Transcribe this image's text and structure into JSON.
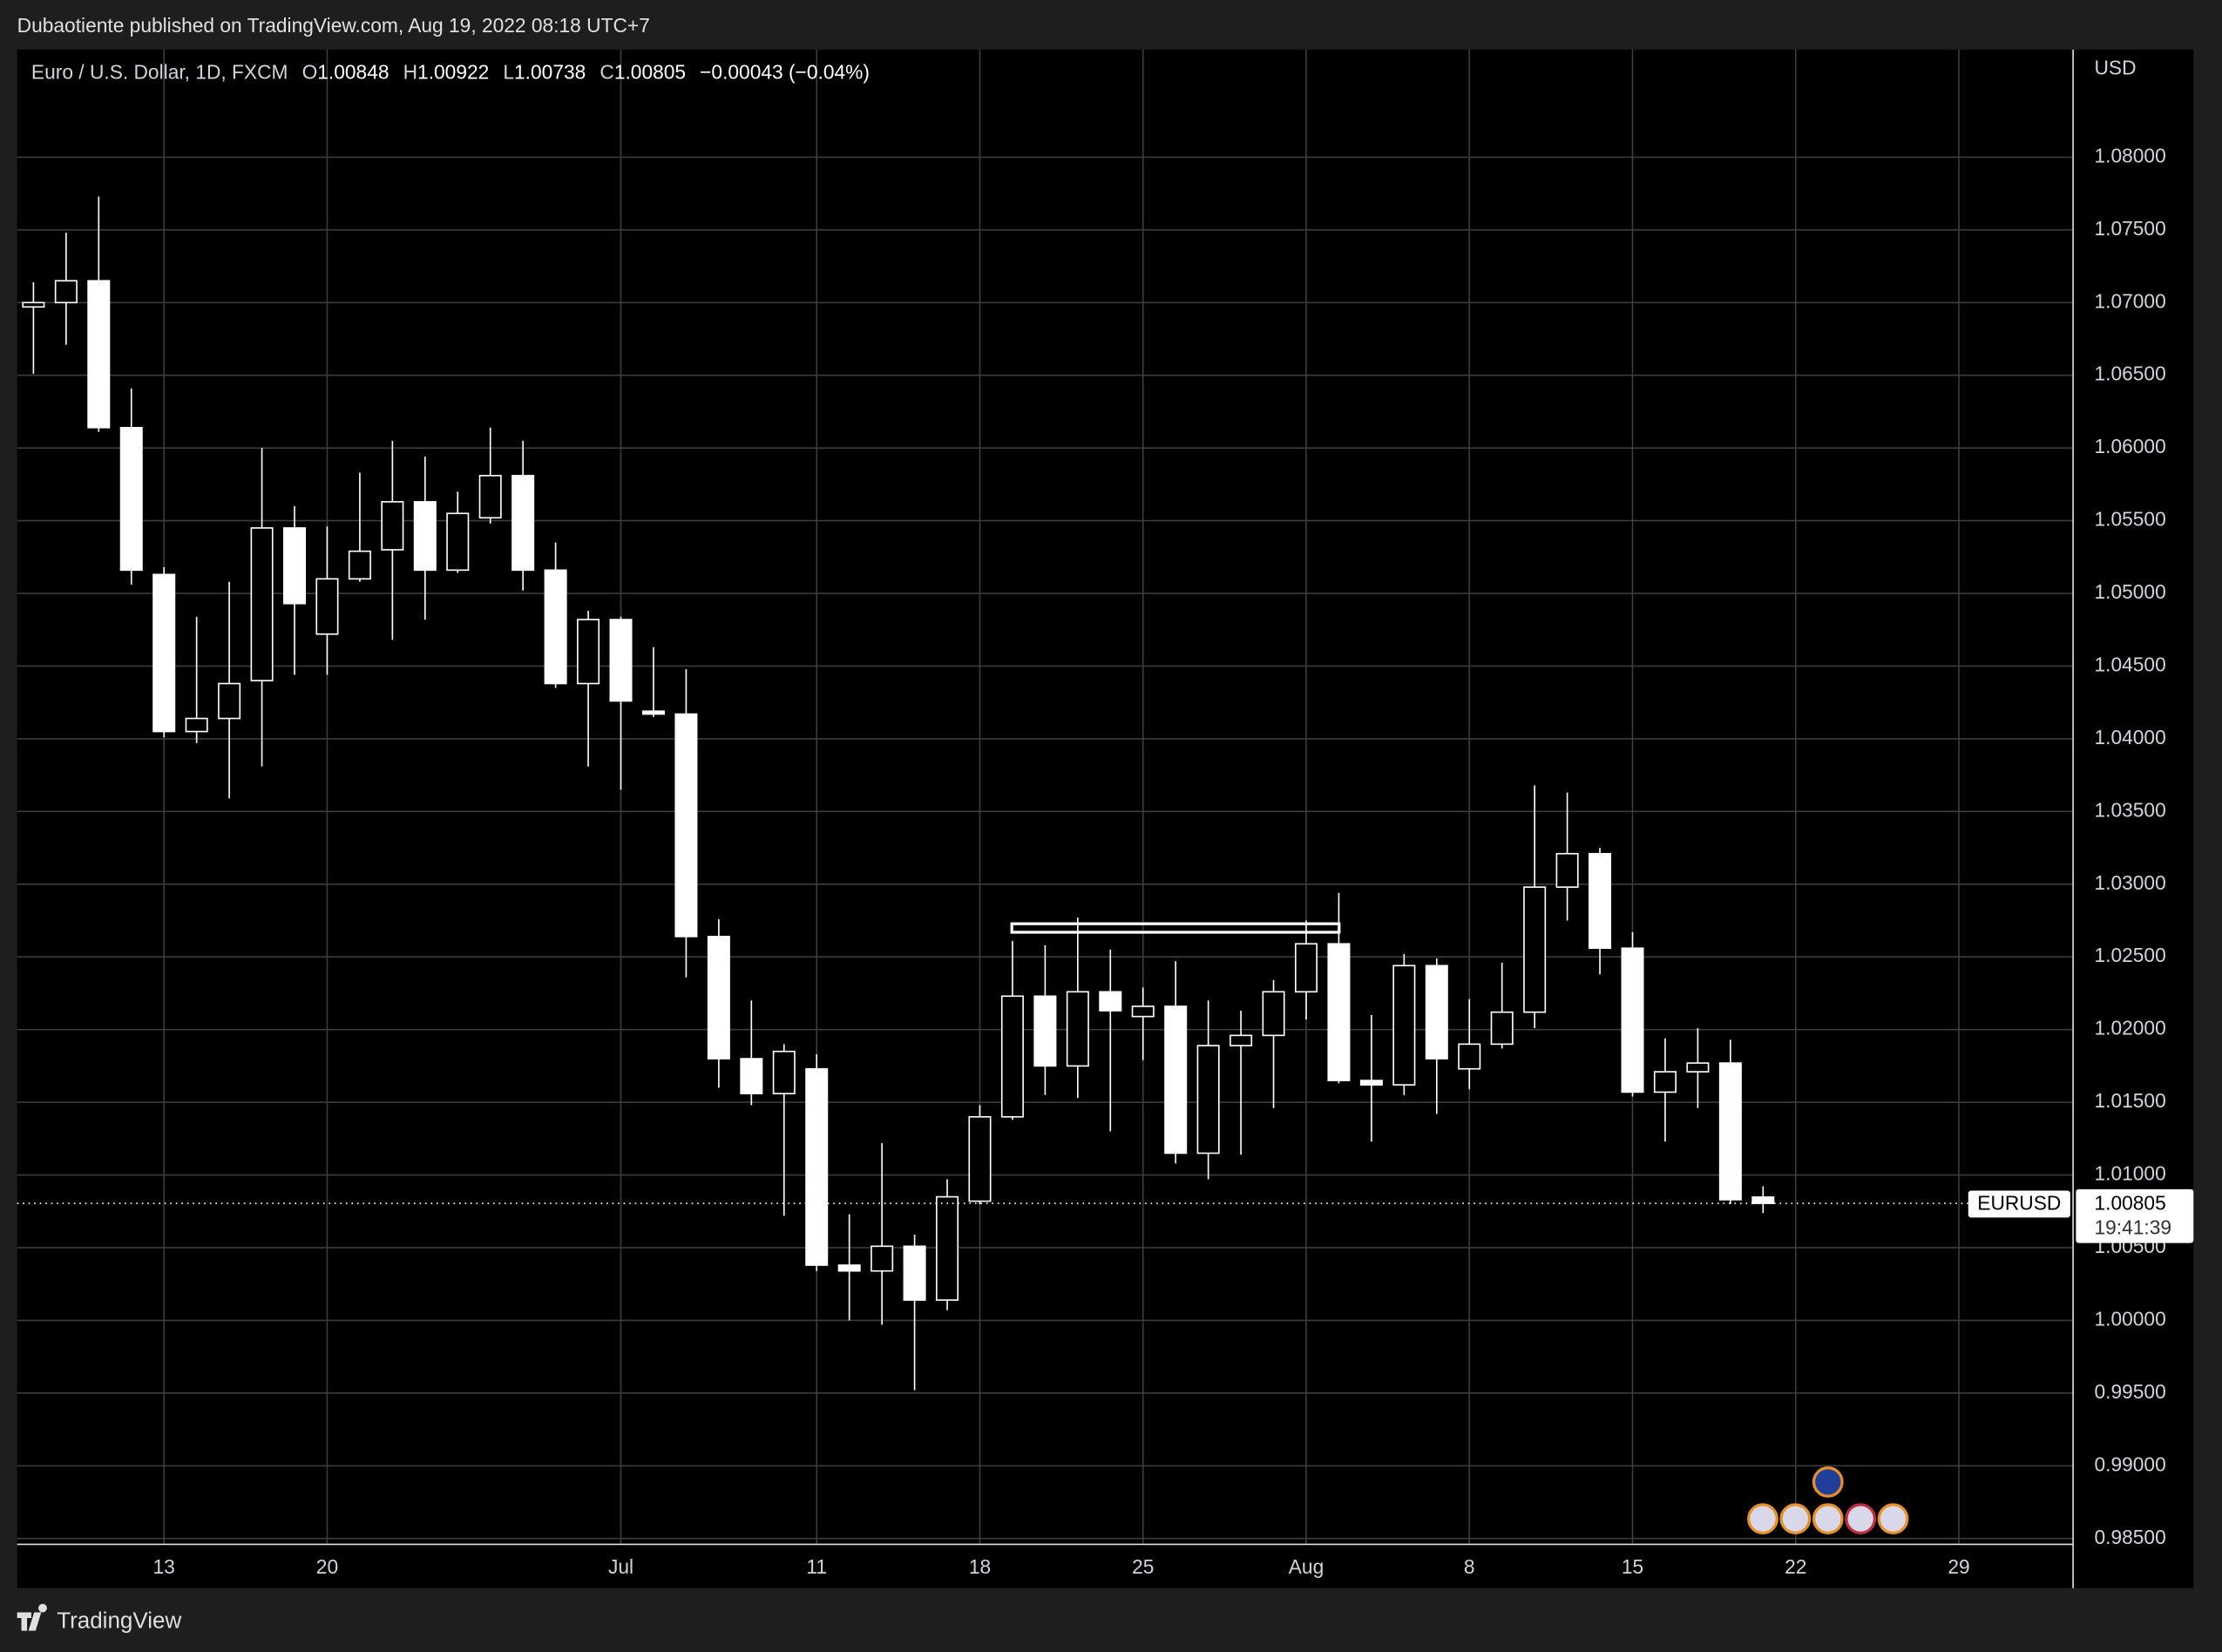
{
  "header": {
    "publisher": "Dubaotiente published on TradingView.com, Aug 19, 2022 08:18 UTC+7",
    "footer_logo": "TradingView"
  },
  "chart_data": {
    "type": "candlestick",
    "title": "Euro / U.S. Dollar, 1D, FXCM",
    "ohlc_labels": [
      "O",
      "H",
      "L",
      "C"
    ],
    "change_label": "−0.00043 (−0.04%)",
    "currency": "USD",
    "symbol_tag": "EURUSD",
    "countdown": "19:41:39",
    "color": "#ffffff",
    "grid": true,
    "categories": [
      null,
      null,
      null,
      null,
      "13",
      null,
      null,
      null,
      null,
      "20",
      null,
      null,
      null,
      null,
      null,
      null,
      null,
      null,
      "Jul",
      null,
      null,
      null,
      null,
      null,
      "11",
      null,
      null,
      null,
      null,
      "18",
      null,
      null,
      null,
      null,
      "25",
      null,
      null,
      null,
      null,
      "Aug",
      null,
      null,
      null,
      null,
      "8",
      null,
      null,
      null,
      null,
      "15",
      null,
      null,
      null,
      null,
      "22",
      null,
      null,
      null,
      null,
      "29",
      null,
      null,
      null
    ],
    "open": [
      1.0697,
      1.07,
      1.0715,
      1.0614,
      1.0513,
      1.0405,
      1.0414,
      1.044,
      1.0545,
      1.0472,
      1.051,
      1.053,
      1.0563,
      1.0516,
      1.0552,
      1.0581,
      1.0516,
      1.0438,
      1.0482,
      1.0419,
      1.0417,
      1.0264,
      1.018,
      1.0156,
      1.0173,
      1.0038,
      1.0034,
      1.0051,
      1.0014,
      1.0082,
      1.014,
      1.0223,
      1.0175,
      1.0226,
      1.0209,
      1.0216,
      1.0115,
      1.0189,
      1.0196,
      1.0226,
      1.0259,
      1.0165,
      1.0162,
      1.0244,
      1.0173,
      1.019,
      1.0212,
      1.0298,
      1.0321,
      1.0256,
      1.0157,
      1.0171,
      1.0177,
      1.00848,
      null,
      null,
      null,
      null,
      null,
      null,
      null,
      null,
      null
    ],
    "high": [
      1.0714,
      1.0748,
      1.0773,
      1.0641,
      1.0518,
      1.0484,
      1.0508,
      1.06,
      1.056,
      1.0546,
      1.0583,
      1.0605,
      1.0594,
      1.057,
      1.0614,
      1.0605,
      1.0535,
      1.0488,
      1.0484,
      1.0463,
      1.0448,
      1.0276,
      1.022,
      1.019,
      1.0183,
      1.0073,
      1.0122,
      1.0059,
      1.0097,
      1.0148,
      1.0261,
      1.0258,
      1.0277,
      1.0255,
      1.0229,
      1.0247,
      1.022,
      1.0213,
      1.0234,
      1.0275,
      1.0294,
      1.021,
      1.0252,
      1.0249,
      1.0221,
      1.0246,
      1.0368,
      1.0363,
      1.0325,
      1.0267,
      1.0194,
      1.0201,
      1.0193,
      1.00922,
      null,
      null,
      null,
      null,
      null,
      null,
      null,
      null,
      null
    ],
    "low": [
      1.0651,
      1.0671,
      1.0611,
      1.0506,
      1.0401,
      1.0397,
      1.0359,
      1.0381,
      1.0444,
      1.0444,
      1.0508,
      1.0468,
      1.0482,
      1.0514,
      1.0548,
      1.0502,
      1.0435,
      1.0381,
      1.0365,
      1.0415,
      1.0236,
      1.016,
      1.0148,
      1.0072,
      1.0034,
      1.0,
      0.9997,
      0.9952,
      1.0007,
      1.008,
      1.0138,
      1.0155,
      1.0153,
      1.013,
      1.0179,
      1.0108,
      1.0097,
      1.0114,
      1.0146,
      1.0207,
      1.0163,
      1.0123,
      1.0155,
      1.0142,
      1.0159,
      1.0187,
      1.0201,
      1.0275,
      1.0238,
      1.0154,
      1.0123,
      1.0146,
      1.008,
      1.00738,
      null,
      null,
      null,
      null,
      null,
      null,
      null,
      null,
      null
    ],
    "close": [
      1.07,
      1.0715,
      1.0614,
      1.0516,
      1.0405,
      1.0414,
      1.0438,
      1.0545,
      1.0493,
      1.051,
      1.0529,
      1.0563,
      1.0516,
      1.0555,
      1.0581,
      1.0516,
      1.0438,
      1.0482,
      1.0426,
      1.0417,
      1.0264,
      1.018,
      1.0156,
      1.0185,
      1.0038,
      1.0034,
      1.0051,
      1.0014,
      1.0085,
      1.014,
      1.0223,
      1.0175,
      1.0226,
      1.0213,
      1.0216,
      1.0115,
      1.0189,
      1.0196,
      1.0226,
      1.0259,
      1.0165,
      1.0162,
      1.0244,
      1.018,
      1.019,
      1.0212,
      1.0298,
      1.0321,
      1.0256,
      1.0157,
      1.0171,
      1.0177,
      1.0083,
      1.00805,
      null,
      null,
      null,
      null,
      null,
      null,
      null,
      null,
      null
    ],
    "ylim": [
      0.9846,
      1.0874
    ],
    "yticks": [
      {
        "value": 0.985,
        "label": "0.98500"
      },
      {
        "value": 0.99,
        "label": "0.99000"
      },
      {
        "value": 0.995,
        "label": "0.99500"
      },
      {
        "value": 1.0,
        "label": "1.00000"
      },
      {
        "value": 1.005,
        "label": "1.00500"
      },
      {
        "value": 1.01,
        "label": "1.01000"
      },
      {
        "value": 1.015,
        "label": "1.01500"
      },
      {
        "value": 1.02,
        "label": "1.02000"
      },
      {
        "value": 1.025,
        "label": "1.02500"
      },
      {
        "value": 1.03,
        "label": "1.03000"
      },
      {
        "value": 1.035,
        "label": "1.03500"
      },
      {
        "value": 1.04,
        "label": "1.04000"
      },
      {
        "value": 1.045,
        "label": "1.04500"
      },
      {
        "value": 1.05,
        "label": "1.05000"
      },
      {
        "value": 1.055,
        "label": "1.05500"
      },
      {
        "value": 1.06,
        "label": "1.06000"
      },
      {
        "value": 1.065,
        "label": "1.06500"
      },
      {
        "value": 1.07,
        "label": "1.07000"
      },
      {
        "value": 1.075,
        "label": "1.07500"
      },
      {
        "value": 1.08,
        "label": "1.08000"
      }
    ]
  }
}
